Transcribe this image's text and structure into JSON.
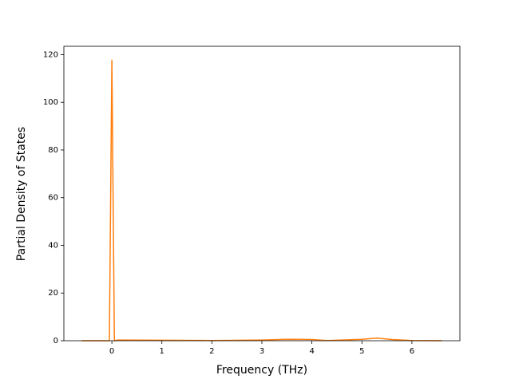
{
  "chart_data": {
    "type": "line",
    "xlabel": "Frequency (THz)",
    "ylabel": "Partial Density of States",
    "x": [
      -0.6,
      -0.05,
      0,
      0.05,
      0.12,
      1,
      2,
      3,
      3.5,
      4,
      4.3,
      4.6,
      5,
      5.3,
      5.6,
      6,
      6.6
    ],
    "series": [
      {
        "color": "#ff7f0e",
        "values": [
          0,
          0,
          117.7,
          0,
          0.3,
          0.2,
          0.1,
          0.3,
          0.6,
          0.5,
          0.1,
          0.3,
          0.6,
          1.1,
          0.5,
          0.1,
          0
        ]
      }
    ],
    "xlim": [
      -0.96,
      6.96
    ],
    "ylim": [
      0,
      123.5
    ],
    "xticks": [
      0,
      1,
      2,
      3,
      4,
      5,
      6
    ],
    "yticks": [
      0,
      20,
      40,
      60,
      80,
      100,
      120
    ],
    "grid": false
  }
}
